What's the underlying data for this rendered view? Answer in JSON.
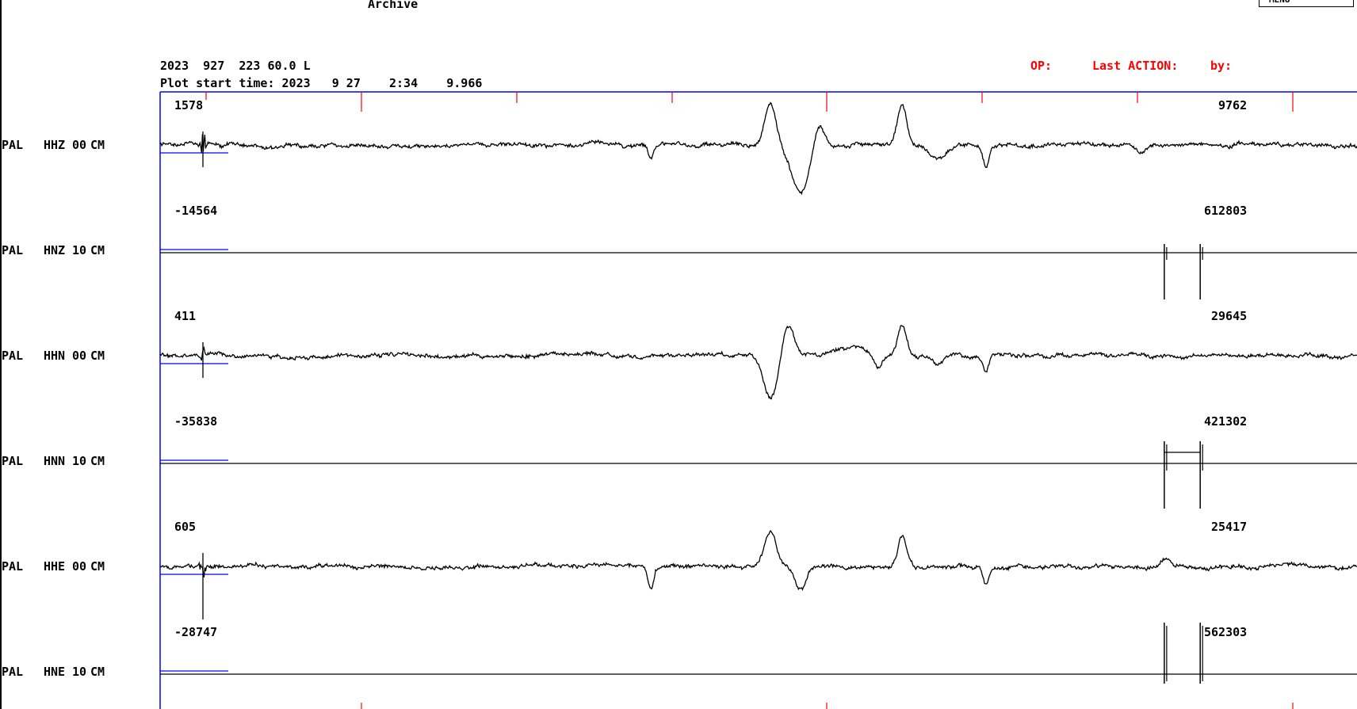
{
  "header": {
    "archive_label": "Archive",
    "menu_label": "MENU",
    "info_line": "2023  927  223 60.0 L",
    "plot_start": "Plot start time: 2023   9 27    2:34    9.966",
    "op_label": "OP:",
    "last_action_label": "Last ACTION:",
    "by_label": "by:"
  },
  "colors": {
    "frame": "#0000ff",
    "tick": "#ff0000",
    "trace": "#000000",
    "status_text": "#ff0000",
    "scale_bar": "#0000ff"
  },
  "channels": [
    {
      "station": "PAL",
      "channel": "HHZ",
      "loc": "00",
      "net": "CM",
      "amp_left": "1578",
      "amp_right": "9762",
      "kind": "broadband",
      "seed": 11,
      "events": [
        [
          0.41,
          18,
          0.5
        ],
        [
          0.51,
          -55,
          1
        ],
        [
          0.535,
          60,
          1.6
        ],
        [
          0.55,
          -30,
          1
        ],
        [
          0.62,
          -50,
          0.8
        ],
        [
          0.65,
          15,
          1.5
        ],
        [
          0.69,
          28,
          0.5
        ],
        [
          0.82,
          10,
          0.8
        ]
      ]
    },
    {
      "station": "PAL",
      "channel": "HNZ",
      "loc": "10",
      "net": "CM",
      "amp_left": "-14564",
      "amp_right": "612803",
      "kind": "strong",
      "seed": 21,
      "spikes": [
        0.839,
        0.869
      ],
      "spike_up": -8,
      "spike_down": 62,
      "plateau": false
    },
    {
      "station": "PAL",
      "channel": "HHN",
      "loc": "00",
      "net": "CM",
      "amp_left": "411",
      "amp_right": "29645",
      "kind": "broadband",
      "seed": 31,
      "events": [
        [
          0.51,
          55,
          1.2
        ],
        [
          0.525,
          -40,
          1.0
        ],
        [
          0.575,
          -8,
          3
        ],
        [
          0.6,
          18,
          0.7
        ],
        [
          0.62,
          -40,
          0.8
        ],
        [
          0.65,
          10,
          1
        ],
        [
          0.69,
          20,
          0.5
        ]
      ]
    },
    {
      "station": "PAL",
      "channel": "HNN",
      "loc": "10",
      "net": "CM",
      "amp_left": "-35838",
      "amp_right": "421302",
      "kind": "strong",
      "seed": 41,
      "spikes": [
        0.839,
        0.869
      ],
      "spike_up": -25,
      "spike_down": 60,
      "plateau": true
    },
    {
      "station": "PAL",
      "channel": "HHE",
      "loc": "00",
      "net": "CM",
      "amp_left": "605",
      "amp_right": "25417",
      "kind": "broadband",
      "seed": 51,
      "events": [
        [
          0.41,
          30,
          0.5
        ],
        [
          0.51,
          -45,
          1
        ],
        [
          0.535,
          30,
          1
        ],
        [
          0.62,
          -40,
          0.8
        ],
        [
          0.69,
          25,
          0.5
        ],
        [
          0.84,
          -12,
          0.8
        ]
      ]
    },
    {
      "station": "PAL",
      "channel": "HNE",
      "loc": "10",
      "net": "CM",
      "amp_left": "-28747",
      "amp_right": "562303",
      "kind": "strong",
      "seed": 61,
      "spikes": [
        0.839,
        0.869
      ],
      "spike_up": -62,
      "spike_down": 15,
      "plateau": false
    }
  ]
}
